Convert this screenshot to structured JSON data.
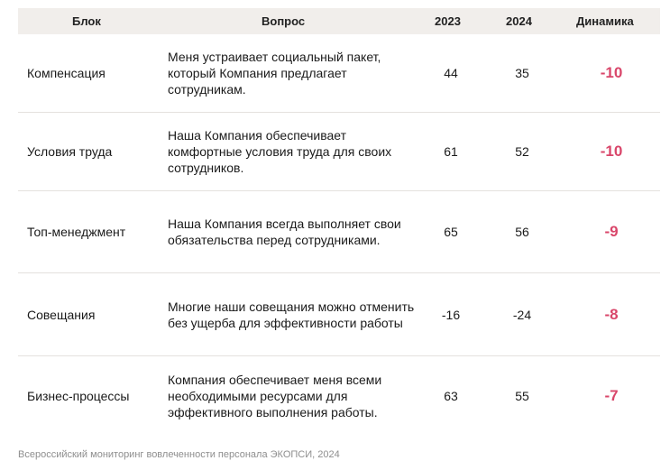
{
  "header": {
    "block": "Блок",
    "question": "Вопрос",
    "y2023": "2023",
    "y2024": "2024",
    "change": "Динамика"
  },
  "rows": [
    {
      "block": "Компенсация",
      "question": "Меня устраивает социальный пакет, который Компания предлагает сотрудникам.",
      "y2023": "44",
      "y2024": "35",
      "change": "-10"
    },
    {
      "block": "Условия труда",
      "question": "Наша Компания обеспечивает комфортные условия труда для своих сотрудников.",
      "y2023": "61",
      "y2024": "52",
      "change": "-10"
    },
    {
      "block": "Топ-менеджмент",
      "question": "Наша Компания всегда выполняет свои обязательства перед сотрудниками.",
      "y2023": "65",
      "y2024": "56",
      "change": "-9"
    },
    {
      "block": "Совещания",
      "question": "Многие наши совещания можно отменить без ущерба для эффективности работы",
      "y2023": "-16",
      "y2024": "-24",
      "change": "-8"
    },
    {
      "block": "Бизнес-процессы",
      "question": "Компания обеспечивает меня всеми необходимыми ресурсами для эффективного выполнения работы.",
      "y2023": "63",
      "y2024": "55",
      "change": "-7"
    }
  ],
  "footer": {
    "source": "Всероссийский мониторинг вовлеченности персонала ЭКОПСИ, 2024"
  },
  "colors": {
    "negative": "#d9466a",
    "header_bg": "#f1eeeb"
  }
}
